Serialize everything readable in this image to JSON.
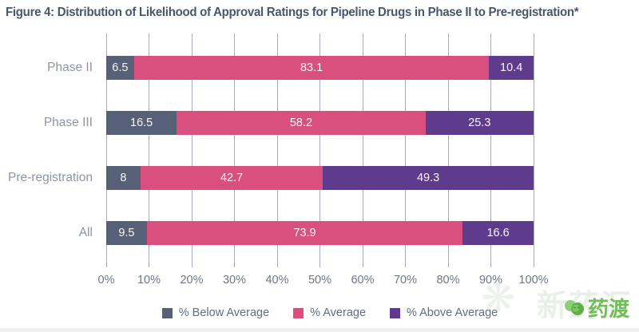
{
  "title": "Figure 4: Distribution of Likelihood of Approval Ratings for Pipeline Drugs in Phase II to Pre-registration*",
  "chart_data": {
    "type": "bar",
    "orientation": "horizontal",
    "stacked": true,
    "categories": [
      "Phase II",
      "Phase III",
      "Pre-registration",
      "All"
    ],
    "series": [
      {
        "name": "% Below Average",
        "color": "#566077",
        "values": [
          6.5,
          16.5,
          8,
          9.5
        ]
      },
      {
        "name": "% Average",
        "color": "#d94f7d",
        "values": [
          83.1,
          58.2,
          42.7,
          73.9
        ]
      },
      {
        "name": "% Above Average",
        "color": "#5e3b8c",
        "values": [
          10.4,
          25.3,
          49.3,
          16.6
        ]
      }
    ],
    "x_ticks": [
      "0%",
      "10%",
      "20%",
      "30%",
      "40%",
      "50%",
      "60%",
      "70%",
      "80%",
      "90%",
      "100%"
    ],
    "xlim": [
      0,
      100
    ],
    "grid": "vertical",
    "gridline_color": "#aaadb6",
    "legend_position": "bottom",
    "value_label_color": "#ffffff"
  },
  "watermark": {
    "background_text": "新药汇",
    "logo_text": "药渡",
    "logo_color": "#72bd5a",
    "tree-icon": "green-tree-logo-icon",
    "sun_glyph": "❋"
  }
}
